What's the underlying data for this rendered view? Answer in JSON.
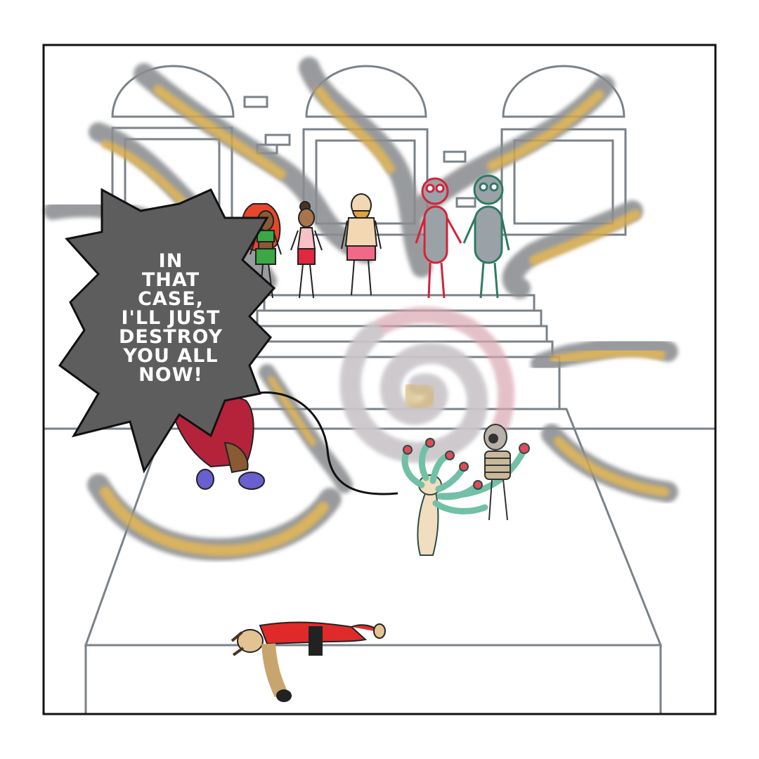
{
  "speech_bubble": {
    "text": "IN\nTHAT\nCASE,\nI'LL JUST\nDESTROY\nYOU ALL\nNOW!"
  },
  "colors": {
    "frame": "#111111",
    "architecture_gray": "#7a8288",
    "smoke_gray": "#8a8d90",
    "smoke_gold": "#d4a94a",
    "bubble_fill": "#5d5d5d",
    "spiral_pink": "#d9a7b3",
    "red_figure": "#d2233a",
    "green_figure": "#2f7a63"
  },
  "characters": [
    "redhead-woman",
    "dark-haired-woman",
    "bald-bearded-man",
    "red-outline-figure",
    "green-outline-figure",
    "leaping-fighter",
    "tentacle-creature",
    "bandaged-mummy",
    "fallen-fighter"
  ]
}
